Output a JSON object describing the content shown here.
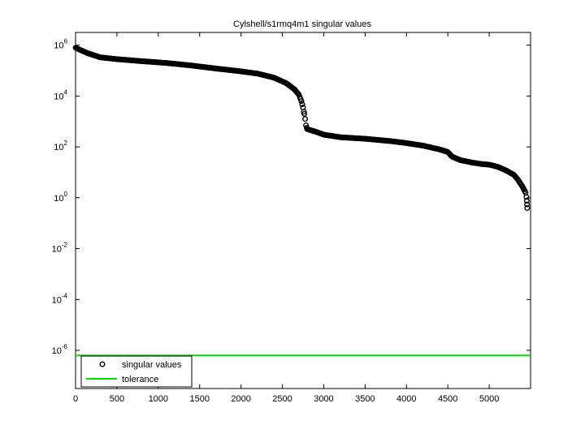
{
  "chart_data": {
    "type": "scatter",
    "title": "Cylshell/s1rmq4m1 singular values",
    "xlabel": "",
    "ylabel": "",
    "xlim": [
      0,
      5500
    ],
    "ylim_log10": [
      -7.5,
      6.5
    ],
    "x_scale": "linear",
    "y_scale": "log",
    "grid": false,
    "legend_placement": "bottom-left",
    "x_ticks": [
      0,
      500,
      1000,
      1500,
      2000,
      2500,
      3000,
      3500,
      4000,
      4500,
      5000
    ],
    "x_tick_labels": [
      "0",
      "500",
      "1000",
      "1500",
      "2000",
      "2500",
      "3000",
      "3500",
      "4000",
      "4500",
      "5000"
    ],
    "y_ticks_log10": [
      -6,
      -4,
      -2,
      0,
      2,
      4,
      6
    ],
    "y_tick_labels": [
      {
        "base": "10",
        "exp": "-6"
      },
      {
        "base": "10",
        "exp": "-4"
      },
      {
        "base": "10",
        "exp": "-2"
      },
      {
        "base": "10",
        "exp": "0"
      },
      {
        "base": "10",
        "exp": "2"
      },
      {
        "base": "10",
        "exp": "4"
      },
      {
        "base": "10",
        "exp": "6"
      }
    ],
    "series": [
      {
        "name": "singular values",
        "marker": "circle",
        "color": "#000000",
        "points_x_log10y": [
          [
            1,
            5.9
          ],
          [
            50,
            5.82
          ],
          [
            150,
            5.68
          ],
          [
            300,
            5.52
          ],
          [
            500,
            5.45
          ],
          [
            800,
            5.37
          ],
          [
            1100,
            5.3
          ],
          [
            1400,
            5.2
          ],
          [
            1700,
            5.08
          ],
          [
            2000,
            4.97
          ],
          [
            2200,
            4.88
          ],
          [
            2400,
            4.72
          ],
          [
            2550,
            4.5
          ],
          [
            2650,
            4.25
          ],
          [
            2700,
            4.05
          ],
          [
            2730,
            3.8
          ],
          [
            2750,
            3.55
          ],
          [
            2765,
            3.3
          ],
          [
            2775,
            3.1
          ],
          [
            2785,
            2.85
          ],
          [
            2800,
            2.7
          ],
          [
            2900,
            2.6
          ],
          [
            3000,
            2.48
          ],
          [
            3200,
            2.38
          ],
          [
            3500,
            2.32
          ],
          [
            3800,
            2.23
          ],
          [
            4000,
            2.15
          ],
          [
            4200,
            2.05
          ],
          [
            4400,
            1.9
          ],
          [
            4500,
            1.8
          ],
          [
            4550,
            1.62
          ],
          [
            4650,
            1.48
          ],
          [
            4800,
            1.38
          ],
          [
            4900,
            1.33
          ],
          [
            5000,
            1.3
          ],
          [
            5100,
            1.22
          ],
          [
            5200,
            1.08
          ],
          [
            5300,
            0.9
          ],
          [
            5350,
            0.7
          ],
          [
            5400,
            0.45
          ],
          [
            5440,
            0.2
          ],
          [
            5450,
            0.03
          ],
          [
            5455,
            -0.12
          ],
          [
            5459,
            -0.4
          ]
        ]
      },
      {
        "name": "tolerance",
        "line": true,
        "color": "#00e000",
        "y_log10": -6.2
      }
    ]
  }
}
